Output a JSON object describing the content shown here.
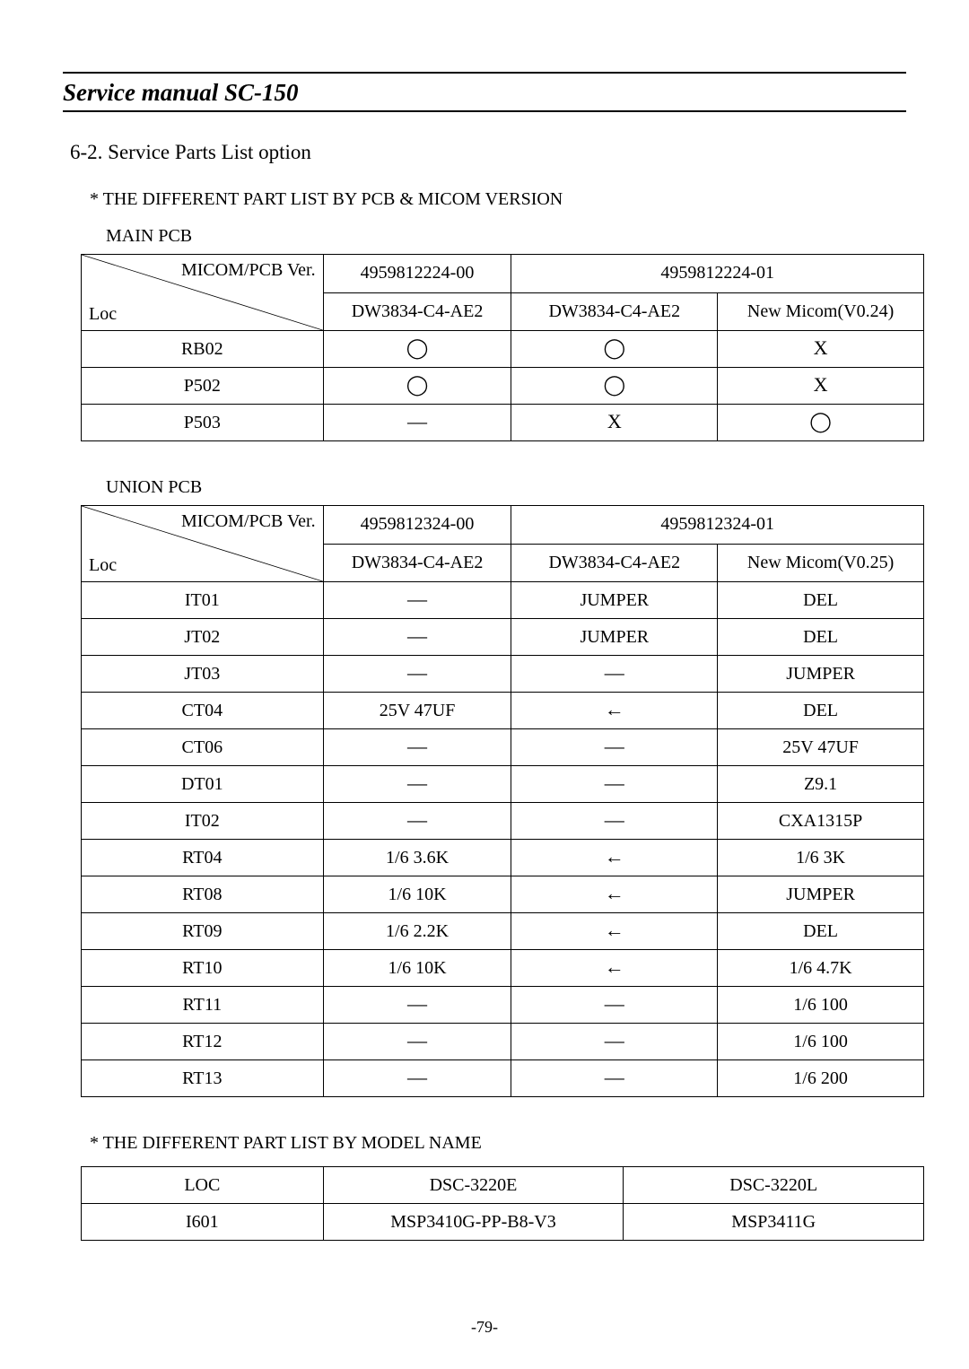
{
  "header": {
    "title": "Service manual SC-150"
  },
  "section": {
    "number_title": "6-2. Service Parts List option",
    "sub1": "* THE DIFFERENT PART LIST BY PCB & MICOM VERSION",
    "sub2": "* THE DIFFERENT PART LIST BY MODEL NAME"
  },
  "labels": {
    "main_pcb": "MAIN PCB",
    "union_pcb": "UNION PCB",
    "diag_top": "MICOM/PCB Ver.",
    "diag_bot": "Loc"
  },
  "symbols": {
    "circle": "◯",
    "x": "X",
    "dash": "—",
    "arrow_left": "←"
  },
  "table_main": {
    "col_widths": [
      "270px",
      "210px",
      "230px",
      "230px"
    ],
    "top_row": {
      "c2": "4959812224-00",
      "c3_span": "4959812224-01"
    },
    "second_row": {
      "c2": "DW3834-C4-AE2",
      "c3": "DW3834-C4-AE2",
      "c4": "New Micom(V0.24)"
    },
    "rows": [
      {
        "loc": "RB02",
        "v1": "circle",
        "v2": "circle",
        "v3": "x"
      },
      {
        "loc": "P502",
        "v1": "circle",
        "v2": "circle",
        "v3": "x"
      },
      {
        "loc": "P503",
        "v1": "dash",
        "v2": "x",
        "v3": "circle"
      }
    ]
  },
  "table_union": {
    "col_widths": [
      "270px",
      "210px",
      "230px",
      "230px"
    ],
    "top_row": {
      "c2": "4959812324-00",
      "c3_span": "4959812324-01"
    },
    "second_row": {
      "c2": "DW3834-C4-AE2",
      "c3": "DW3834-C4-AE2",
      "c4": "New Micom(V0.25)"
    },
    "rows": [
      {
        "loc": "IT01",
        "v1": "dash",
        "v2": "JUMPER",
        "v3": "DEL"
      },
      {
        "loc": "JT02",
        "v1": "dash",
        "v2": "JUMPER",
        "v3": "DEL"
      },
      {
        "loc": "JT03",
        "v1": "dash",
        "v2": "dash",
        "v3": "JUMPER"
      },
      {
        "loc": "CT04",
        "v1": "25V 47UF",
        "v2": "arrow_left",
        "v3": "DEL"
      },
      {
        "loc": "CT06",
        "v1": "dash",
        "v2": "dash",
        "v3": "25V 47UF"
      },
      {
        "loc": "DT01",
        "v1": "dash",
        "v2": "dash",
        "v3": "Z9.1"
      },
      {
        "loc": "IT02",
        "v1": "dash",
        "v2": "dash",
        "v3": "CXA1315P"
      },
      {
        "loc": "RT04",
        "v1": "1/6 3.6K",
        "v2": "arrow_left",
        "v3": "1/6 3K"
      },
      {
        "loc": "RT08",
        "v1": "1/6 10K",
        "v2": "arrow_left",
        "v3": "JUMPER"
      },
      {
        "loc": "RT09",
        "v1": "1/6 2.2K",
        "v2": "arrow_left",
        "v3": "DEL"
      },
      {
        "loc": "RT10",
        "v1": "1/6 10K",
        "v2": "arrow_left",
        "v3": "1/6 4.7K"
      },
      {
        "loc": "RT11",
        "v1": "dash",
        "v2": "dash",
        "v3": "1/6 100"
      },
      {
        "loc": "RT12",
        "v1": "dash",
        "v2": "dash",
        "v3": "1/6 100"
      },
      {
        "loc": "RT13",
        "v1": "dash",
        "v2": "dash",
        "v3": "1/6 200"
      }
    ]
  },
  "table_model": {
    "col_widths": [
      "270px",
      "335px",
      "335px"
    ],
    "header": [
      "LOC",
      "DSC-3220E",
      "DSC-3220L"
    ],
    "rows": [
      [
        "I601",
        "MSP3410G-PP-B8-V3",
        "MSP3411G"
      ]
    ]
  },
  "footer": {
    "page_num": "-79-"
  }
}
